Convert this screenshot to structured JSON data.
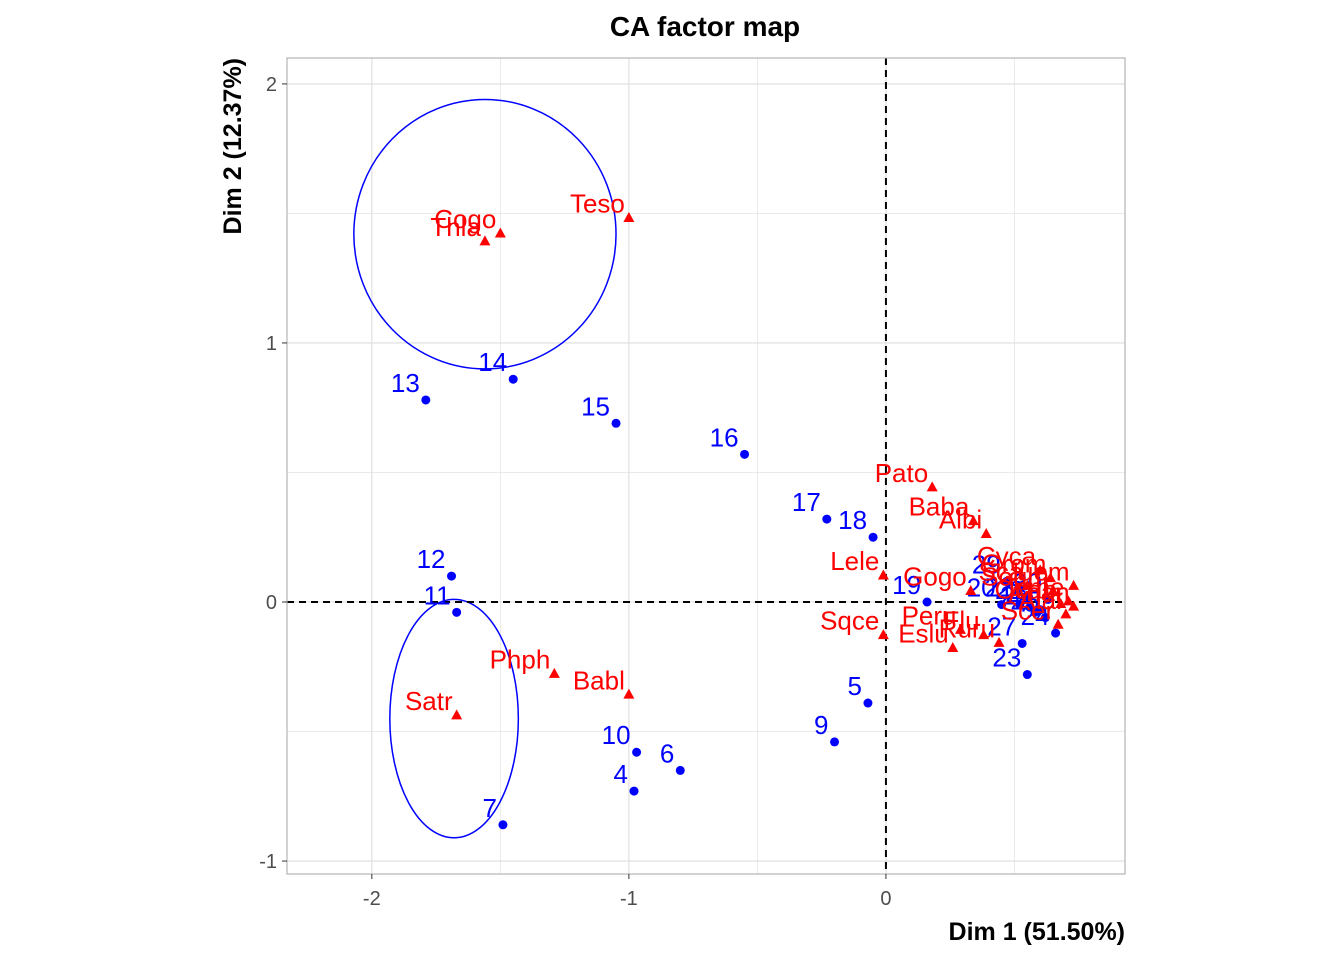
{
  "colors": {
    "rows": "#0000ff",
    "columns": "#ff0000",
    "grid": "#dedede",
    "panel_border": "#b3b3b3",
    "ellipse": "#0000ff"
  },
  "chart_data": {
    "type": "scatter",
    "title": "CA factor map",
    "xlabel": "Dim 1 (51.50%)",
    "ylabel": "Dim 2 (12.37%)",
    "xlim": [
      -2.33,
      0.93
    ],
    "ylim": [
      -1.05,
      2.1
    ],
    "xticks": [
      -2,
      -1,
      0
    ],
    "yticks": [
      -1,
      0,
      1,
      2
    ],
    "xtick_labels": [
      "-2",
      "-1",
      "0"
    ],
    "ytick_labels": [
      "-1",
      "0",
      "1",
      "2"
    ],
    "grid": true,
    "reference_lines": {
      "x": 0,
      "y": 0,
      "style": "dashed"
    },
    "series": [
      {
        "marker": "circle",
        "color": "#0000ff",
        "points": [
          {
            "label": "4",
            "x": -0.98,
            "y": -0.73
          },
          {
            "label": "5",
            "x": -0.07,
            "y": -0.39
          },
          {
            "label": "6",
            "x": -0.8,
            "y": -0.65
          },
          {
            "label": "7",
            "x": -1.49,
            "y": -0.86
          },
          {
            "label": "9",
            "x": -0.2,
            "y": -0.54
          },
          {
            "label": "10",
            "x": -0.97,
            "y": -0.58
          },
          {
            "label": "11",
            "x": -1.67,
            "y": -0.04
          },
          {
            "label": "12",
            "x": -1.69,
            "y": 0.1
          },
          {
            "label": "13",
            "x": -1.79,
            "y": 0.78
          },
          {
            "label": "14",
            "x": -1.45,
            "y": 0.86
          },
          {
            "label": "15",
            "x": -1.05,
            "y": 0.69
          },
          {
            "label": "16",
            "x": -0.55,
            "y": 0.57
          },
          {
            "label": "17",
            "x": -0.23,
            "y": 0.32
          },
          {
            "label": "18",
            "x": -0.05,
            "y": 0.25
          },
          {
            "label": "19",
            "x": 0.16,
            "y": 0.0
          },
          {
            "label": "20",
            "x": 0.45,
            "y": -0.01
          },
          {
            "label": "21",
            "x": 0.52,
            "y": -0.01
          },
          {
            "label": "22",
            "x": 0.56,
            "y": -0.02
          },
          {
            "label": "23",
            "x": 0.55,
            "y": -0.28
          },
          {
            "label": "24",
            "x": 0.66,
            "y": -0.12
          },
          {
            "label": "25",
            "x": 0.62,
            "y": -0.06
          },
          {
            "label": "26",
            "x": 0.58,
            "y": -0.04
          },
          {
            "label": "27",
            "x": 0.53,
            "y": -0.16
          },
          {
            "label": "28",
            "x": 0.6,
            "y": -0.03
          },
          {
            "label": "29",
            "x": 0.47,
            "y": 0.08
          },
          {
            "label": "30",
            "x": 0.63,
            "y": 0.01
          }
        ]
      },
      {
        "marker": "triangle",
        "color": "#ff0000",
        "points": [
          {
            "label": "Cogo",
            "x": -1.5,
            "y": 1.42
          },
          {
            "label": "Thla",
            "x": -1.56,
            "y": 1.39
          },
          {
            "label": "Teso",
            "x": -1.0,
            "y": 1.48
          },
          {
            "label": "Pato",
            "x": 0.18,
            "y": 0.44
          },
          {
            "label": "Baba",
            "x": 0.34,
            "y": 0.31
          },
          {
            "label": "Albi",
            "x": 0.39,
            "y": 0.26
          },
          {
            "label": "Lele",
            "x": -0.01,
            "y": 0.1
          },
          {
            "label": "Gogo",
            "x": 0.33,
            "y": 0.04
          },
          {
            "label": "Cyca",
            "x": 0.6,
            "y": 0.12
          },
          {
            "label": "Grom",
            "x": 0.64,
            "y": 0.09
          },
          {
            "label": "Juem",
            "x": 0.73,
            "y": 0.06
          },
          {
            "label": "Soum",
            "x": 0.65,
            "y": 0.04
          },
          {
            "label": "Sca",
            "x": 0.55,
            "y": 0.06
          },
          {
            "label": "Sqce",
            "x": -0.01,
            "y": -0.13
          },
          {
            "label": "Satr",
            "x": -1.67,
            "y": -0.44
          },
          {
            "label": "Phph",
            "x": -1.29,
            "y": -0.28
          },
          {
            "label": "Babl",
            "x": -1.0,
            "y": -0.36
          },
          {
            "label": "Peru",
            "x": 0.29,
            "y": -0.11
          },
          {
            "label": "Flu",
            "x": 0.38,
            "y": -0.13
          },
          {
            "label": "Eslu",
            "x": 0.26,
            "y": -0.18
          },
          {
            "label": "Ruru",
            "x": 0.44,
            "y": -0.16
          },
          {
            "label": "Scer",
            "x": 0.67,
            "y": -0.09
          },
          {
            "label": "Alal",
            "x": 0.7,
            "y": -0.05
          },
          {
            "label": "Anan",
            "x": 0.73,
            "y": -0.02
          },
          {
            "label": "Icme",
            "x": 0.71,
            "y": 0.0
          },
          {
            "label": "Ocab",
            "x": 0.68,
            "y": -0.01
          }
        ]
      }
    ],
    "ellipses": [
      {
        "cx": -1.56,
        "cy": 1.42,
        "rx": 0.51,
        "ry": 0.52
      },
      {
        "cx": -1.68,
        "cy": -0.45,
        "rx": 0.25,
        "ry": 0.46
      }
    ]
  }
}
